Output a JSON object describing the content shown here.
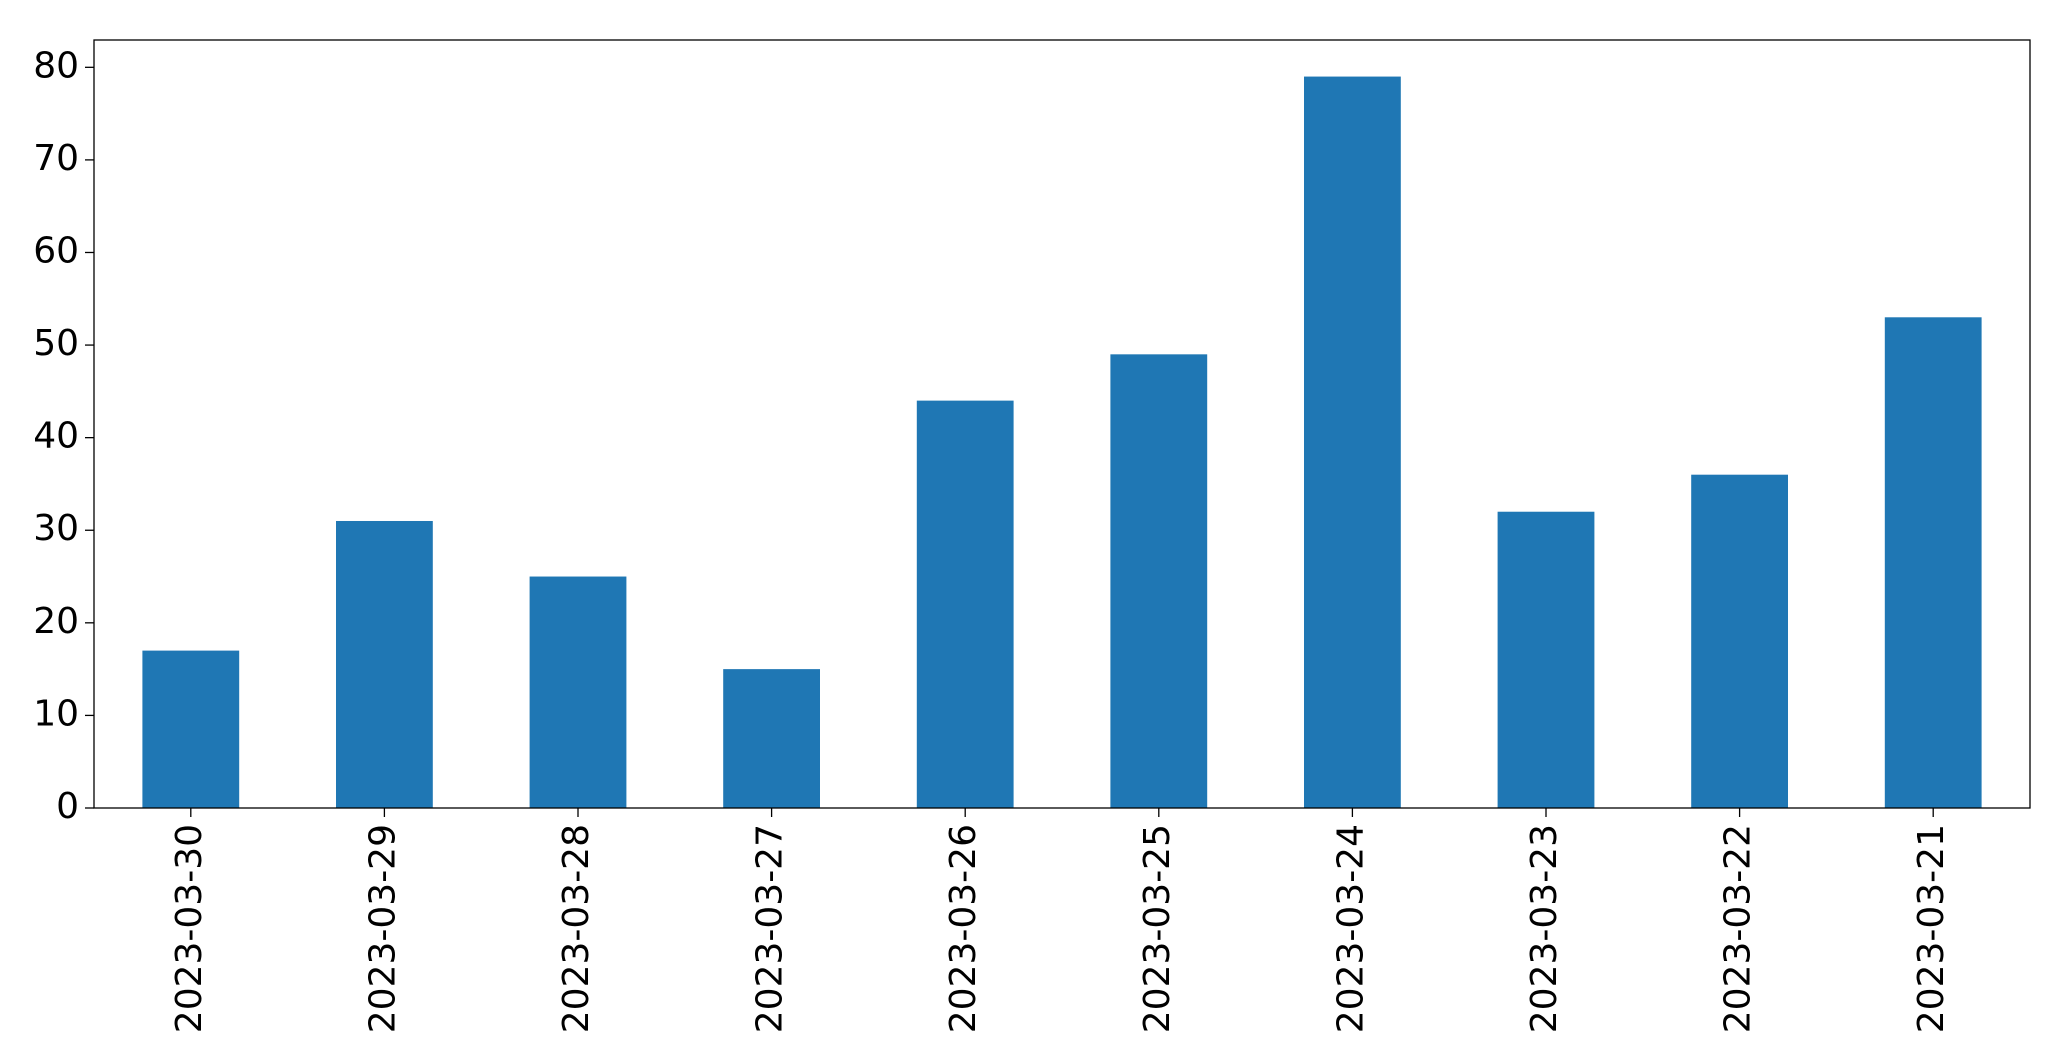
{
  "chart_data": {
    "type": "bar",
    "categories": [
      "2023-03-30",
      "2023-03-29",
      "2023-03-28",
      "2023-03-27",
      "2023-03-26",
      "2023-03-25",
      "2023-03-24",
      "2023-03-23",
      "2023-03-22",
      "2023-03-21"
    ],
    "values": [
      17,
      31,
      25,
      15,
      44,
      49,
      79,
      32,
      36,
      53
    ],
    "color": "#1f77b4",
    "ylim": [
      0,
      82.95
    ],
    "yticks": [
      0,
      10,
      20,
      30,
      40,
      50,
      60,
      70,
      80
    ],
    "grid": false
  }
}
